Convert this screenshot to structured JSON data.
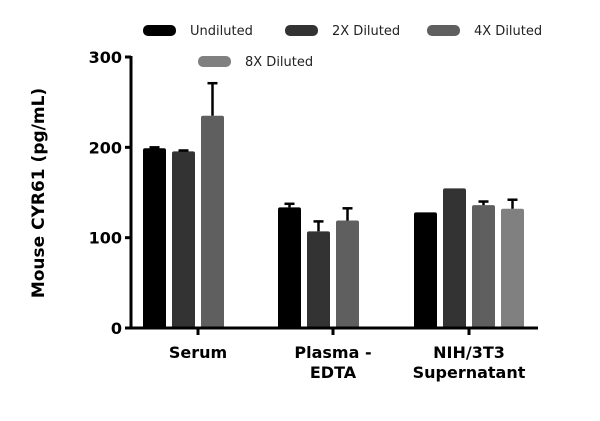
{
  "chart_data": {
    "type": "bar",
    "title": "",
    "xlabel": "",
    "ylabel": "Mouse CYR61 (pg/mL)",
    "ylim": [
      0,
      300
    ],
    "yticks": [
      "0",
      "100",
      "200",
      "300"
    ],
    "categories": [
      [
        "Serum"
      ],
      [
        "Plasma -",
        "EDTA"
      ],
      [
        "NIH/3T3",
        "Supernatant"
      ]
    ],
    "legend_position": "top",
    "series": [
      {
        "name": "Undiluted",
        "color": "#000000",
        "values": [
          199,
          133.5,
          128
        ],
        "errors": [
          1,
          4,
          0
        ]
      },
      {
        "name": "2X Diluted",
        "color": "#333333",
        "values": [
          195.5,
          107,
          154.5
        ],
        "errors": [
          1,
          11,
          0
        ]
      },
      {
        "name": "4X Diluted",
        "color": "#5f5f5f",
        "values": [
          235,
          119,
          136
        ],
        "errors": [
          36,
          13.5,
          4
        ]
      },
      {
        "name": "8X Diluted",
        "color": "#808080",
        "values": [
          null,
          null,
          132
        ],
        "errors": [
          null,
          null,
          10
        ]
      }
    ]
  }
}
